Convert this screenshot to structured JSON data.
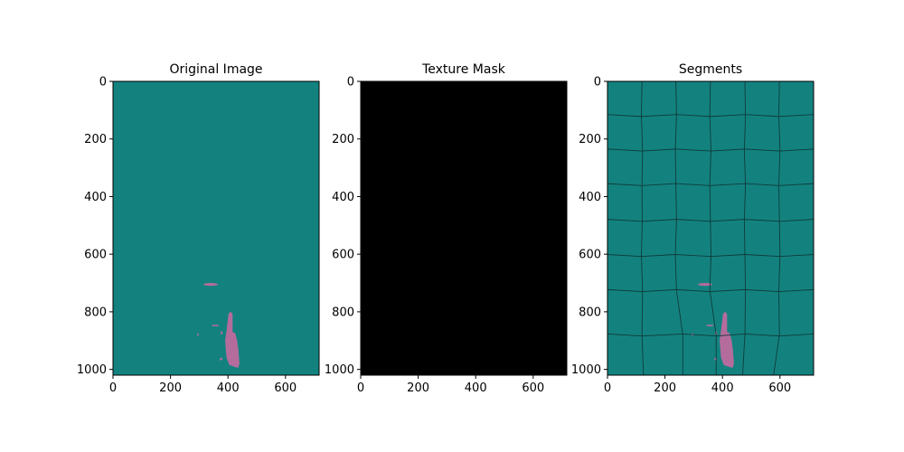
{
  "chart_data": [
    {
      "type": "heatmap",
      "title": "Original Image",
      "x_ticks": [
        0,
        200,
        400,
        600
      ],
      "y_ticks": [
        0,
        200,
        400,
        600,
        800,
        1000
      ],
      "xlim": [
        0,
        717
      ],
      "ylim": [
        1020,
        0
      ],
      "background_color": "#13827f",
      "feature_color": "#b46c9c",
      "overlay": false
    },
    {
      "type": "heatmap",
      "title": "Texture Mask",
      "x_ticks": [
        0,
        200,
        400,
        600
      ],
      "y_ticks": [
        0,
        200,
        400,
        600,
        800,
        1000
      ],
      "xlim": [
        0,
        717
      ],
      "ylim": [
        1020,
        0
      ],
      "background_color": "#000000"
    },
    {
      "type": "heatmap",
      "title": "Segments",
      "x_ticks": [
        0,
        200,
        400,
        600
      ],
      "y_ticks": [
        0,
        200,
        400,
        600,
        800,
        1000
      ],
      "xlim": [
        0,
        717
      ],
      "ylim": [
        1020,
        0
      ],
      "background_color": "#13827f",
      "feature_color": "#b46c9c",
      "boundary_color": "#0e3b3b",
      "overlay": true
    }
  ]
}
